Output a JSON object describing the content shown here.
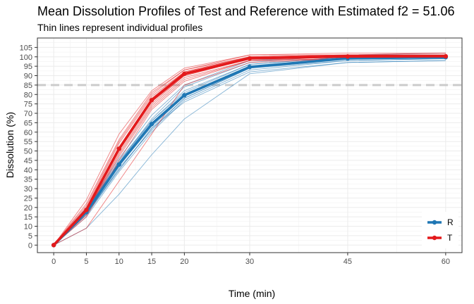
{
  "chart_data": {
    "type": "line",
    "title": "Mean Dissolution Profiles of Test and Reference with Estimated f2 = 51.06",
    "subtitle": "Thin lines represent individual profiles",
    "xlabel": "Time (min)",
    "ylabel": "Dissolution (%)",
    "x": [
      0,
      5,
      10,
      15,
      20,
      30,
      45,
      60
    ],
    "xlim": [
      -2.5,
      62.5
    ],
    "ylim": [
      -4,
      110
    ],
    "x_ticks": [
      "0",
      "5",
      "10",
      "15",
      "20",
      "30",
      "45",
      "60"
    ],
    "y_ticks": [
      "0",
      "5",
      "10",
      "15",
      "20",
      "25",
      "30",
      "35",
      "40",
      "45",
      "50",
      "55",
      "60",
      "65",
      "70",
      "75",
      "80",
      "85",
      "90",
      "95",
      "100",
      "105"
    ],
    "reference_line": {
      "y": 85,
      "style": "dashed"
    },
    "grid": true,
    "legend_position": "bottom-right",
    "series": [
      {
        "name": "R",
        "color": "#1f77b4",
        "mean": [
          0,
          17.5,
          42.8,
          64.3,
          79.6,
          94.6,
          99.2,
          99.8
        ],
        "individual": [
          [
            0,
            17,
            43,
            65,
            80,
            95,
            99,
            100
          ],
          [
            0,
            19,
            45,
            66,
            81,
            96,
            100,
            101
          ],
          [
            0,
            16,
            40,
            62,
            78,
            94,
            98,
            99
          ],
          [
            0,
            18,
            44,
            67,
            84,
            97,
            101,
            101
          ],
          [
            0,
            15,
            39,
            60,
            77,
            93,
            98,
            99
          ],
          [
            0,
            20,
            46,
            69,
            85,
            98,
            101,
            102
          ],
          [
            0,
            17,
            42,
            63,
            79,
            95,
            99,
            100
          ],
          [
            0,
            16,
            41,
            61,
            78,
            94,
            99,
            100
          ],
          [
            0,
            19,
            44,
            66,
            82,
            96,
            100,
            101
          ],
          [
            0,
            18,
            43,
            64,
            80,
            95,
            99,
            100
          ],
          [
            0,
            9,
            27,
            48,
            67,
            91,
            97,
            98
          ],
          [
            0,
            17,
            40,
            62,
            76,
            92,
            97,
            98
          ]
        ]
      },
      {
        "name": "T",
        "color": "#e31a1c",
        "mean": [
          0,
          18.7,
          51.2,
          77.0,
          91.0,
          99.2,
          100.2,
          100.3
        ],
        "individual": [
          [
            0,
            19,
            52,
            78,
            92,
            100,
            101,
            101
          ],
          [
            0,
            22,
            56,
            81,
            93,
            101,
            101,
            102
          ],
          [
            0,
            17,
            49,
            75,
            90,
            99,
            100,
            100
          ],
          [
            0,
            24,
            59,
            82,
            94,
            101,
            102,
            102
          ],
          [
            0,
            16,
            47,
            73,
            88,
            98,
            99,
            100
          ],
          [
            0,
            20,
            54,
            79,
            92,
            100,
            101,
            101
          ],
          [
            0,
            18,
            50,
            76,
            90,
            99,
            100,
            100
          ],
          [
            0,
            21,
            55,
            80,
            93,
            100,
            101,
            101
          ],
          [
            0,
            17,
            48,
            74,
            89,
            98,
            99,
            100
          ],
          [
            0,
            19,
            52,
            77,
            91,
            99,
            100,
            101
          ],
          [
            0,
            9,
            34,
            59,
            85,
            97,
            99,
            100
          ],
          [
            0,
            15,
            45,
            72,
            87,
            98,
            100,
            100
          ]
        ]
      }
    ]
  }
}
